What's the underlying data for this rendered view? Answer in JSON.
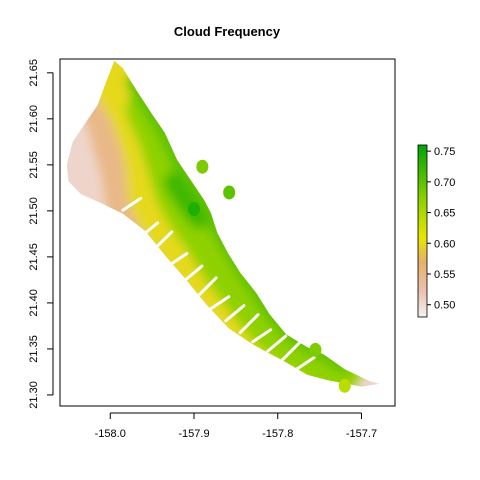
{
  "chart_data": {
    "type": "heatmap",
    "title": "Cloud Frequency",
    "xlabel": "",
    "ylabel": "",
    "xlim": [
      -158.06,
      -157.66
    ],
    "ylim": [
      21.288,
      21.665
    ],
    "x_ticks": [
      -158.0,
      -157.9,
      -157.8,
      -157.7
    ],
    "x_tick_labels": [
      "-158.0",
      "-157.9",
      "-157.8",
      "-157.7"
    ],
    "y_ticks": [
      21.3,
      21.35,
      21.4,
      21.45,
      21.5,
      21.55,
      21.6,
      21.65
    ],
    "y_tick_labels": [
      "21.30",
      "21.35",
      "21.40",
      "21.45",
      "21.50",
      "21.55",
      "21.60",
      "21.65"
    ],
    "grid": false,
    "legend_position": "right",
    "colorbar": {
      "range": [
        0.48,
        0.76
      ],
      "ticks": [
        0.5,
        0.55,
        0.6,
        0.65,
        0.7,
        0.75
      ],
      "tick_labels": [
        "0.50",
        "0.55",
        "0.60",
        "0.65",
        "0.70",
        "0.75"
      ],
      "color_stops": [
        {
          "value": 0.48,
          "color": "#f2f2f2"
        },
        {
          "value": 0.52,
          "color": "#ebc3b3"
        },
        {
          "value": 0.57,
          "color": "#e6b06a"
        },
        {
          "value": 0.61,
          "color": "#e6e600"
        },
        {
          "value": 0.67,
          "color": "#8fd100"
        },
        {
          "value": 0.72,
          "color": "#3cb800"
        },
        {
          "value": 0.76,
          "color": "#00a600"
        }
      ]
    },
    "landmass": {
      "outline": [
        [
          -157.995,
          21.663
        ],
        [
          -157.985,
          21.655
        ],
        [
          -157.968,
          21.63
        ],
        [
          -157.95,
          21.605
        ],
        [
          -157.935,
          21.585
        ],
        [
          -157.92,
          21.555
        ],
        [
          -157.905,
          21.535
        ],
        [
          -157.888,
          21.512
        ],
        [
          -157.88,
          21.498
        ],
        [
          -157.872,
          21.476
        ],
        [
          -157.86,
          21.455
        ],
        [
          -157.845,
          21.433
        ],
        [
          -157.825,
          21.41
        ],
        [
          -157.81,
          21.388
        ],
        [
          -157.79,
          21.366
        ],
        [
          -157.765,
          21.352
        ],
        [
          -157.745,
          21.344
        ],
        [
          -157.72,
          21.328
        ],
        [
          -157.69,
          21.315
        ],
        [
          -157.678,
          21.312
        ],
        [
          -157.7,
          21.309
        ],
        [
          -157.74,
          21.316
        ],
        [
          -157.765,
          21.322
        ],
        [
          -157.78,
          21.33
        ],
        [
          -157.795,
          21.338
        ],
        [
          -157.81,
          21.345
        ],
        [
          -157.83,
          21.355
        ],
        [
          -157.858,
          21.372
        ],
        [
          -157.885,
          21.398
        ],
        [
          -157.912,
          21.428
        ],
        [
          -157.935,
          21.452
        ],
        [
          -157.958,
          21.478
        ],
        [
          -157.985,
          21.497
        ],
        [
          -158.008,
          21.507
        ],
        [
          -158.035,
          21.518
        ],
        [
          -158.05,
          21.532
        ],
        [
          -158.052,
          21.55
        ],
        [
          -158.045,
          21.575
        ],
        [
          -158.03,
          21.595
        ],
        [
          -158.015,
          21.615
        ],
        [
          -158.005,
          21.64
        ]
      ],
      "isolines": [
        {
          "value": 0.55,
          "points": [
            [
              -158.0,
              21.65
            ],
            [
              -157.975,
              21.615
            ],
            [
              -157.965,
              21.58
            ],
            [
              -157.955,
              21.55
            ],
            [
              -157.95,
              21.52
            ],
            [
              -157.945,
              21.5
            ],
            [
              -157.93,
              21.48
            ],
            [
              -157.905,
              21.45
            ],
            [
              -157.87,
              21.41
            ],
            [
              -157.84,
              21.38
            ],
            [
              -157.8,
              21.35
            ],
            [
              -157.77,
              21.33
            ]
          ]
        },
        {
          "value": 0.6,
          "points": [
            [
              -157.985,
              21.65
            ],
            [
              -157.962,
              21.615
            ],
            [
              -157.948,
              21.58
            ],
            [
              -157.94,
              21.55
            ],
            [
              -157.938,
              21.52
            ],
            [
              -157.928,
              21.5
            ],
            [
              -157.915,
              21.48
            ],
            [
              -157.89,
              21.45
            ],
            [
              -157.86,
              21.42
            ],
            [
              -157.83,
              21.39
            ],
            [
              -157.79,
              21.36
            ],
            [
              -157.75,
              21.335
            ]
          ]
        },
        {
          "value": 0.67,
          "points": [
            [
              -157.95,
              21.61
            ],
            [
              -157.935,
              21.58
            ],
            [
              -157.925,
              21.55
            ],
            [
              -157.915,
              21.52
            ],
            [
              -157.9,
              21.495
            ],
            [
              -157.88,
              21.47
            ],
            [
              -157.86,
              21.44
            ],
            [
              -157.835,
              21.41
            ],
            [
              -157.805,
              21.375
            ],
            [
              -157.77,
              21.35
            ],
            [
              -157.73,
              21.33
            ]
          ]
        },
        {
          "value": 0.72,
          "points": [
            [
              -157.92,
              21.53
            ],
            [
              -157.905,
              21.51
            ],
            [
              -157.893,
              21.495
            ]
          ]
        }
      ]
    },
    "islands": [
      {
        "center": [
          -157.858,
          21.52
        ],
        "value": 0.7
      },
      {
        "center": [
          -157.89,
          21.548
        ],
        "value": 0.68
      },
      {
        "center": [
          -157.9,
          21.502
        ],
        "value": 0.74
      },
      {
        "center": [
          -157.755,
          21.349
        ],
        "value": 0.68
      },
      {
        "center": [
          -157.72,
          21.31
        ],
        "value": 0.64
      }
    ]
  }
}
